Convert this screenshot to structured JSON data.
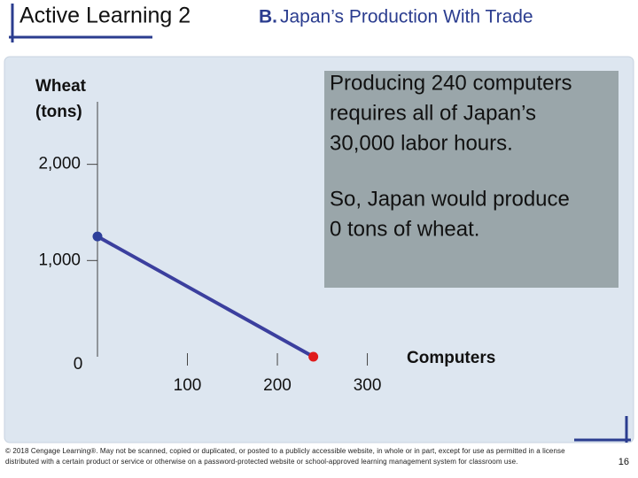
{
  "chart_data": {
    "type": "line",
    "title": "Active Learning 2",
    "subtitle_prefix": "B.",
    "subtitle": "Japan’s Production With Trade",
    "y_label_lines": [
      "Wheat",
      "(tons)"
    ],
    "x_label": "Computers",
    "x": [
      0,
      240
    ],
    "series": [
      {
        "name": "Japan",
        "color": "#3b3f9e",
        "values": [
          1250,
          0
        ],
        "marker_colors": [
          "#2d3f9b",
          "#e01b1b"
        ]
      }
    ],
    "xlim": [
      0,
      330
    ],
    "ylim": [
      0,
      2650
    ],
    "xticks": [
      100,
      200,
      300
    ],
    "yticks": [
      0,
      {
        "value": 1000,
        "label": "1,000"
      },
      {
        "value": 2000,
        "label": "2,000"
      }
    ],
    "annotation": {
      "color": "#9aa6aa",
      "paragraphs": [
        [
          "Producing 240 computers",
          "requires all of Japan’s",
          "30,000 labor hours."
        ],
        [
          "So, Japan would produce",
          "0 tons of wheat."
        ]
      ]
    },
    "footer": "© 2018 Cengage Learning®. May not be scanned, copied or duplicated, or posted to a publicly accessible website, in whole or in part, except for use as permitted in a license distributed with a certain product or service or otherwise on a password-protected website or school-approved learning management system for classroom use.",
    "page_number": "16"
  }
}
